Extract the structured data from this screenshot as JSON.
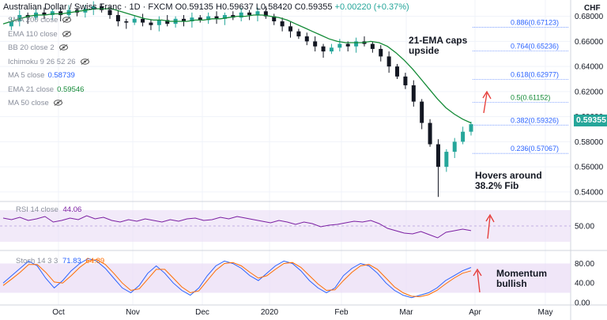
{
  "header": {
    "symbol": "Australian Dollar / Swiss Franc · 1D · FXCM",
    "open": "O0.59135",
    "high": "H0.59637",
    "low": "L0.58420",
    "close": "C0.59355",
    "change": "+0.00220 (+0.37%)"
  },
  "indicators": [
    {
      "label": "SMA 200 close",
      "value": "",
      "color": "#8a8f9c",
      "hidden": true
    },
    {
      "label": "EMA 110 close",
      "value": "",
      "color": "#8a8f9c",
      "hidden": true
    },
    {
      "label": "BB 20 close 2",
      "value": "",
      "color": "#8a8f9c",
      "hidden": true
    },
    {
      "label": "Ichimoku 9 26 52 26",
      "value": "",
      "color": "#8a8f9c",
      "hidden": true
    },
    {
      "label": "MA 5 close",
      "value": "0.58739",
      "color": "#2962ff",
      "hidden": false
    },
    {
      "label": "EMA 21 close",
      "value": "0.59546",
      "color": "#138a36",
      "hidden": false
    },
    {
      "label": "MA 50 close",
      "value": "",
      "color": "#8a8f9c",
      "hidden": true
    }
  ],
  "currency": "CHF",
  "last_price": "0.59355",
  "annotations": {
    "ema_caps": [
      "21-EMA caps",
      "upside"
    ],
    "hovers": [
      "Hovers around",
      "38.2% Fib"
    ],
    "momentum": [
      "Momentum",
      "bullish"
    ]
  },
  "rsi": {
    "label": "RSI 14 close",
    "value": "44.06"
  },
  "stoch": {
    "label": "Stoch 14 3 3",
    "k": "71.83",
    "d": "64.89"
  },
  "colors": {
    "up": "#26a69a",
    "down": "#131722",
    "ema21": "#138a36",
    "ma5": "#2962ff",
    "fib": "#2962ff",
    "rsi": "#7b1fa2",
    "stoch_k": "#2962ff",
    "stoch_d": "#ff6d00",
    "arrow": "#e53935",
    "band": "#e9dcf5"
  },
  "chart_data": [
    {
      "type": "line",
      "title": "Australian Dollar / Swiss Franc · 1D · FXCM",
      "currency": "CHF",
      "x_ticks": [
        "Oct",
        "Nov",
        "Dec",
        "2020",
        "Feb",
        "Mar",
        "Apr",
        "May"
      ],
      "y_ticks": [
        "0.68000",
        "0.66000",
        "0.64000",
        "0.62000",
        "0.60000",
        "0.58000",
        "0.56000",
        "0.54000"
      ],
      "ylim": [
        0.533,
        0.693
      ],
      "fibonacci": [
        {
          "level": "0.886",
          "value": 0.67123
        },
        {
          "level": "0.764",
          "value": 0.65236
        },
        {
          "level": "0.618",
          "value": 0.62977
        },
        {
          "level": "0.5",
          "value": 0.61152
        },
        {
          "level": "0.382",
          "value": 0.59326
        },
        {
          "level": "0.236",
          "value": 0.57067
        }
      ],
      "series": [
        {
          "name": "EMA 21 close",
          "color": "#138a36",
          "values": [
            0.674,
            0.676,
            0.678,
            0.68,
            0.681,
            0.681,
            0.682,
            0.682,
            0.683,
            0.684,
            0.685,
            0.686,
            0.686,
            0.686,
            0.684,
            0.682,
            0.68,
            0.678,
            0.677,
            0.677,
            0.676,
            0.676,
            0.676,
            0.677,
            0.677,
            0.678,
            0.678,
            0.679,
            0.68,
            0.68,
            0.681,
            0.681,
            0.68,
            0.679,
            0.677,
            0.674,
            0.671,
            0.668,
            0.665,
            0.662,
            0.66,
            0.659,
            0.659,
            0.659,
            0.66,
            0.659,
            0.656,
            0.651,
            0.645,
            0.638,
            0.63,
            0.622,
            0.614,
            0.607,
            0.602,
            0.598,
            0.595
          ]
        }
      ]
    },
    {
      "type": "line",
      "title": "RSI 14 close",
      "y_ticks": [
        "50.00"
      ],
      "ylim": [
        20,
        80
      ],
      "band": [
        30,
        70
      ],
      "series": [
        {
          "name": "RSI 14 close",
          "color": "#7b1fa2",
          "values": [
            60,
            58,
            61,
            57,
            59,
            62,
            55,
            57,
            60,
            58,
            63,
            59,
            61,
            57,
            55,
            58,
            56,
            59,
            57,
            55,
            58,
            56,
            59,
            60,
            57,
            58,
            61,
            59,
            62,
            60,
            58,
            56,
            54,
            57,
            55,
            52,
            55,
            53,
            49,
            51,
            52,
            54,
            56,
            55,
            57,
            53,
            47,
            44,
            41,
            40,
            43,
            39,
            35,
            42,
            44,
            46,
            44.06
          ]
        }
      ]
    },
    {
      "type": "line",
      "title": "Stoch 14 3 3",
      "y_ticks": [
        "80.00",
        "40.00",
        "0.00"
      ],
      "ylim": [
        -5,
        105
      ],
      "band": [
        20,
        80
      ],
      "series": [
        {
          "name": "%K",
          "color": "#2962ff",
          "values": [
            40,
            55,
            70,
            85,
            75,
            50,
            30,
            45,
            65,
            80,
            90,
            85,
            70,
            50,
            30,
            20,
            35,
            60,
            75,
            60,
            40,
            25,
            15,
            30,
            55,
            75,
            85,
            80,
            70,
            55,
            45,
            60,
            75,
            85,
            80,
            65,
            45,
            30,
            20,
            30,
            55,
            70,
            80,
            75,
            60,
            40,
            25,
            15,
            10,
            15,
            20,
            30,
            45,
            55,
            65,
            71.83
          ]
        },
        {
          "name": "%D",
          "color": "#ff6d00",
          "values": [
            35,
            48,
            62,
            78,
            78,
            62,
            42,
            40,
            55,
            72,
            85,
            88,
            78,
            60,
            40,
            25,
            28,
            48,
            68,
            68,
            50,
            32,
            20,
            24,
            45,
            66,
            80,
            82,
            75,
            62,
            50,
            55,
            68,
            80,
            82,
            72,
            55,
            38,
            25,
            26,
            45,
            62,
            75,
            78,
            68,
            50,
            32,
            20,
            13,
            12,
            16,
            25,
            38,
            50,
            60,
            64.89
          ]
        }
      ]
    }
  ]
}
